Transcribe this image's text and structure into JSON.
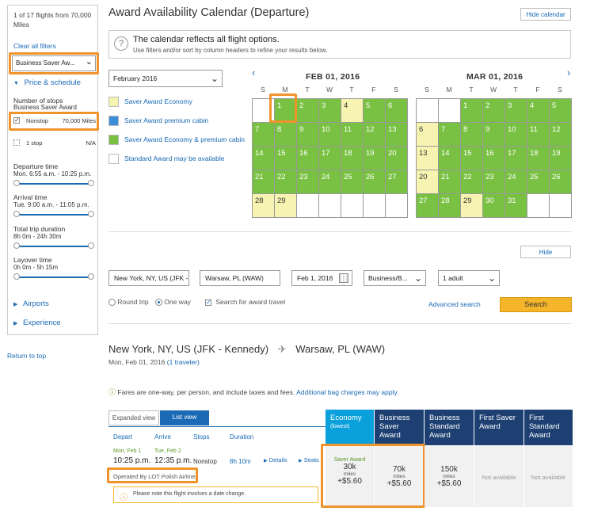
{
  "sidebar": {
    "flight_count": "1 of 17 flights from 70,000 Miles",
    "clear_filters": "Clear all filters",
    "award_select": "Business Saver Aw...",
    "price_schedule": "Price & schedule",
    "stops_label": "Number of stops",
    "stops_sub": "Business Saver Award",
    "nonstop_label": "Nonstop",
    "nonstop_miles": "70,000 Miles",
    "onestop_label": "1 stop",
    "onestop_miles": "N/A",
    "departure_label": "Departure time",
    "departure_range": "Mon. 6:55 a.m. - 10:25 p.m.",
    "arrival_label": "Arrival time",
    "arrival_range": "Tue. 9:00 a.m. - 11:05 p.m.",
    "duration_label": "Total trip duration",
    "duration_range": "8h 0m - 24h 30m",
    "layover_label": "Layover time",
    "layover_range": "0h 0m - 5h 15m",
    "airports": "Airports",
    "experience": "Experience"
  },
  "return_top": "Return to top",
  "header": {
    "title": "Award Availability Calendar (Departure)",
    "hide_calendar": "Hide calendar"
  },
  "notice": {
    "info_glyph": "?",
    "title": "The calendar reflects all flight options.",
    "subtitle": "Use filters and/or sort by column headers to refine your results below."
  },
  "month_select": "February 2016",
  "legend": [
    {
      "label": "Saver Award Economy",
      "color": "#f7f3b0"
    },
    {
      "label": "Saver Award premium cabin",
      "color": "#3b8fd9"
    },
    {
      "label": "Saver Award Economy & premium cabin",
      "color": "#79c142"
    },
    {
      "label": "Standard Award may be available",
      "color": "#ffffff"
    }
  ],
  "calendar": {
    "prev": "‹",
    "next": "›",
    "weekdays": [
      "S",
      "M",
      "T",
      "W",
      "T",
      "F",
      "S"
    ],
    "feb_title": "FEB 01, 2016",
    "mar_title": "MAR 01, 2016",
    "feb_cells": [
      {
        "d": "",
        "c": "w"
      },
      {
        "d": "1",
        "c": "g"
      },
      {
        "d": "2",
        "c": "g"
      },
      {
        "d": "3",
        "c": "g"
      },
      {
        "d": "4",
        "c": "y"
      },
      {
        "d": "5",
        "c": "g"
      },
      {
        "d": "6",
        "c": "g"
      },
      {
        "d": "7",
        "c": "g"
      },
      {
        "d": "8",
        "c": "g"
      },
      {
        "d": "9",
        "c": "g"
      },
      {
        "d": "10",
        "c": "g"
      },
      {
        "d": "11",
        "c": "g"
      },
      {
        "d": "12",
        "c": "g"
      },
      {
        "d": "13",
        "c": "g"
      },
      {
        "d": "14",
        "c": "g"
      },
      {
        "d": "15",
        "c": "g"
      },
      {
        "d": "16",
        "c": "g"
      },
      {
        "d": "17",
        "c": "g"
      },
      {
        "d": "18",
        "c": "g"
      },
      {
        "d": "19",
        "c": "g"
      },
      {
        "d": "20",
        "c": "g"
      },
      {
        "d": "21",
        "c": "g"
      },
      {
        "d": "22",
        "c": "g"
      },
      {
        "d": "23",
        "c": "g"
      },
      {
        "d": "24",
        "c": "g"
      },
      {
        "d": "25",
        "c": "g"
      },
      {
        "d": "26",
        "c": "g"
      },
      {
        "d": "27",
        "c": "g"
      },
      {
        "d": "28",
        "c": "y"
      },
      {
        "d": "29",
        "c": "y"
      },
      {
        "d": "",
        "c": "w"
      },
      {
        "d": "",
        "c": "w"
      },
      {
        "d": "",
        "c": "w"
      },
      {
        "d": "",
        "c": "w"
      },
      {
        "d": "",
        "c": "w"
      }
    ],
    "mar_cells": [
      {
        "d": "",
        "c": "w"
      },
      {
        "d": "",
        "c": "w"
      },
      {
        "d": "1",
        "c": "g"
      },
      {
        "d": "2",
        "c": "g"
      },
      {
        "d": "3",
        "c": "g"
      },
      {
        "d": "4",
        "c": "g"
      },
      {
        "d": "5",
        "c": "g"
      },
      {
        "d": "6",
        "c": "y"
      },
      {
        "d": "7",
        "c": "g"
      },
      {
        "d": "8",
        "c": "g"
      },
      {
        "d": "9",
        "c": "g"
      },
      {
        "d": "10",
        "c": "g"
      },
      {
        "d": "11",
        "c": "g"
      },
      {
        "d": "12",
        "c": "g"
      },
      {
        "d": "13",
        "c": "y"
      },
      {
        "d": "14",
        "c": "g"
      },
      {
        "d": "15",
        "c": "g"
      },
      {
        "d": "16",
        "c": "g"
      },
      {
        "d": "17",
        "c": "g"
      },
      {
        "d": "18",
        "c": "g"
      },
      {
        "d": "19",
        "c": "g"
      },
      {
        "d": "20",
        "c": "y"
      },
      {
        "d": "21",
        "c": "g"
      },
      {
        "d": "22",
        "c": "g"
      },
      {
        "d": "23",
        "c": "g"
      },
      {
        "d": "24",
        "c": "g"
      },
      {
        "d": "25",
        "c": "g"
      },
      {
        "d": "26",
        "c": "g"
      },
      {
        "d": "27",
        "c": "g"
      },
      {
        "d": "28",
        "c": "g"
      },
      {
        "d": "29",
        "c": "y"
      },
      {
        "d": "30",
        "c": "g"
      },
      {
        "d": "31",
        "c": "g"
      },
      {
        "d": "",
        "c": "w"
      },
      {
        "d": "",
        "c": "w"
      }
    ]
  },
  "search": {
    "hide": "Hide",
    "from": "New York, NY, US (JFK - K",
    "to": "Warsaw, PL (WAW)",
    "date": "Feb 1, 2016",
    "cabin": "Business/B...",
    "travelers": "1 adult",
    "round_trip": "Round trip",
    "one_way": "One way",
    "award_travel": "Search for award travel",
    "advanced": "Advanced search",
    "button": "Search"
  },
  "results": {
    "origin": "New York, NY, US (JFK - Kennedy)",
    "destination": "Warsaw, PL (WAW)",
    "date": "Mon, Feb 01, 2016",
    "travelers": "(1 traveler)",
    "fares_note": "Fares are one-way, per person, and include taxes and fees.",
    "bag_link": "Additional bag charges may apply.",
    "tab_expanded": "Expanded view",
    "tab_list": "List view",
    "col_depart": "Depart",
    "col_arrive": "Arrive",
    "col_stops": "Stops",
    "col_duration": "Duration",
    "awards": [
      {
        "title": "Economy",
        "sub": "(lowest)"
      },
      {
        "title": "Business Saver Award",
        "sub": ""
      },
      {
        "title": "Business Standard Award",
        "sub": ""
      },
      {
        "title": "First Saver Award",
        "sub": ""
      },
      {
        "title": "First Standard Award",
        "sub": ""
      }
    ],
    "flight": {
      "dep_date": "Mon, Feb 1",
      "dep_time": "10:25 p.m.",
      "arr_date": "Tue, Feb 2",
      "arr_time": "12:35 p.m.",
      "stops": "Nonstop",
      "duration": "8h 10m",
      "details": "Details",
      "seats": "Seats",
      "operated": "Operated By LOT Polish Airlines",
      "warning": "Please note this flight involves a date change."
    },
    "prices": {
      "economy_label": "Saver Award",
      "economy_miles": "30k",
      "economy_unit": "miles",
      "economy_fee": "+$5.60",
      "bsaver_miles": "70k",
      "bsaver_unit": "miles",
      "bsaver_fee": "+$5.60",
      "bstd_miles": "150k",
      "bstd_unit": "miles",
      "bstd_fee": "+$5.60",
      "first_saver": "Not available",
      "first_std": "Not available"
    }
  },
  "colors": {
    "accent": "#1a6ab5",
    "highlight": "#f0932b",
    "award_saver": "#79c142",
    "award_economy": "#f7f3b0",
    "header_navy": "#1d3f72",
    "header_cyan": "#0aa0dc"
  }
}
